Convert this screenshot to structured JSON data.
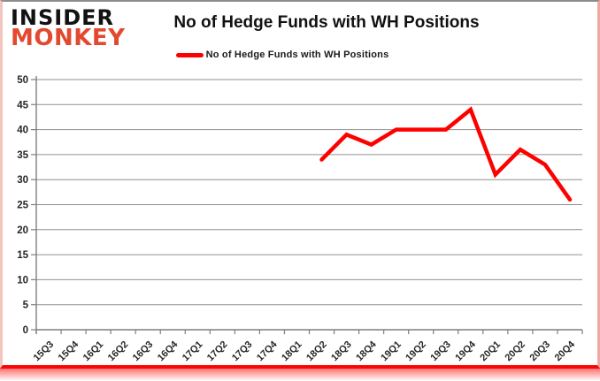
{
  "header": {
    "logo_line1": "INSIDER",
    "logo_line2": "MONKEY",
    "title": "No of Hedge Funds with WH Positions"
  },
  "legend": {
    "label": "No of Hedge Funds with WH Positions"
  },
  "colors": {
    "series_red": "#fe0000",
    "logo_black": "#121212",
    "logo_red": "#e2492f",
    "grid_gray": "#909090",
    "axis_gray": "#7f7f7f",
    "tick_text": "#262626",
    "border_top_gray": "#8c8c8c",
    "border_side_pink": "#f3c3bd",
    "border_bottom_red": "#fb0606"
  },
  "chart_data": {
    "type": "line",
    "title": "No of Hedge Funds with WH Positions",
    "xlabel": "",
    "ylabel": "",
    "categories": [
      "15Q3",
      "15Q4",
      "16Q1",
      "16Q2",
      "16Q3",
      "16Q4",
      "17Q1",
      "17Q2",
      "17Q3",
      "17Q4",
      "18Q1",
      "18Q2",
      "18Q3",
      "18Q4",
      "19Q1",
      "19Q2",
      "19Q3",
      "19Q4",
      "20Q1",
      "20Q2",
      "20Q3",
      "20Q4"
    ],
    "series": [
      {
        "name": "No of Hedge Funds with WH Positions",
        "color": "#fe0000",
        "values": [
          null,
          null,
          null,
          null,
          null,
          null,
          null,
          null,
          null,
          null,
          null,
          34,
          39,
          37,
          40,
          40,
          40,
          44,
          31,
          36,
          33,
          26
        ]
      }
    ],
    "ylim": [
      0,
      50
    ],
    "ytick_step": 5,
    "grid": true,
    "legend_position": "top-center"
  }
}
